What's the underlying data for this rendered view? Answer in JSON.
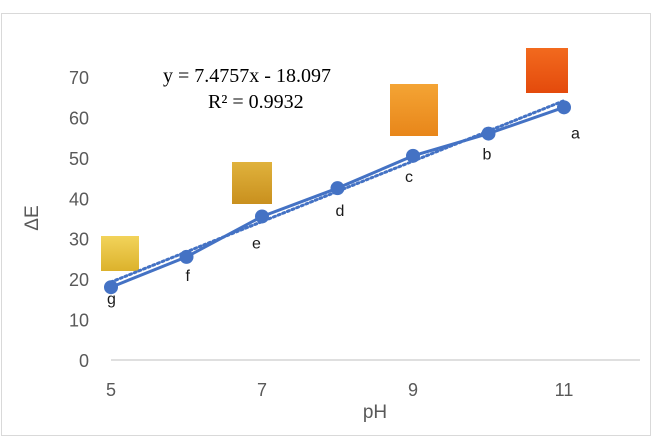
{
  "chart_data": {
    "type": "scatter",
    "xlabel": "pH",
    "ylabel": "ΔE",
    "xlim": [
      5,
      12
    ],
    "ylim": [
      0,
      70
    ],
    "xticks": [
      5,
      7,
      9,
      11
    ],
    "yticks": [
      0,
      10,
      20,
      30,
      40,
      50,
      60,
      70
    ],
    "grid": false,
    "series": [
      {
        "x": [
          5,
          6,
          7,
          8,
          9,
          10,
          11
        ],
        "y": [
          18,
          25.5,
          35.5,
          42.5,
          50.5,
          56,
          62.5
        ],
        "point_labels": [
          "g",
          "f",
          "e",
          "d",
          "c",
          "b",
          "a"
        ],
        "color": "#4472c4",
        "style": "solid line with markers"
      }
    ],
    "trendline": {
      "type": "linear",
      "slope": 7.4757,
      "intercept": -18.097,
      "style": "dotted",
      "color": "#4472c4",
      "equation": "y = 7.4757x  - 18.097",
      "r_squared": "R² = 0.9932"
    },
    "color_swatches": [
      {
        "label": "g",
        "color": "#e8c33c"
      },
      {
        "label": "e",
        "color": "#d6a22a"
      },
      {
        "label": "c",
        "color": "#f09525"
      },
      {
        "label": "a",
        "color": "#ef5512"
      }
    ]
  }
}
